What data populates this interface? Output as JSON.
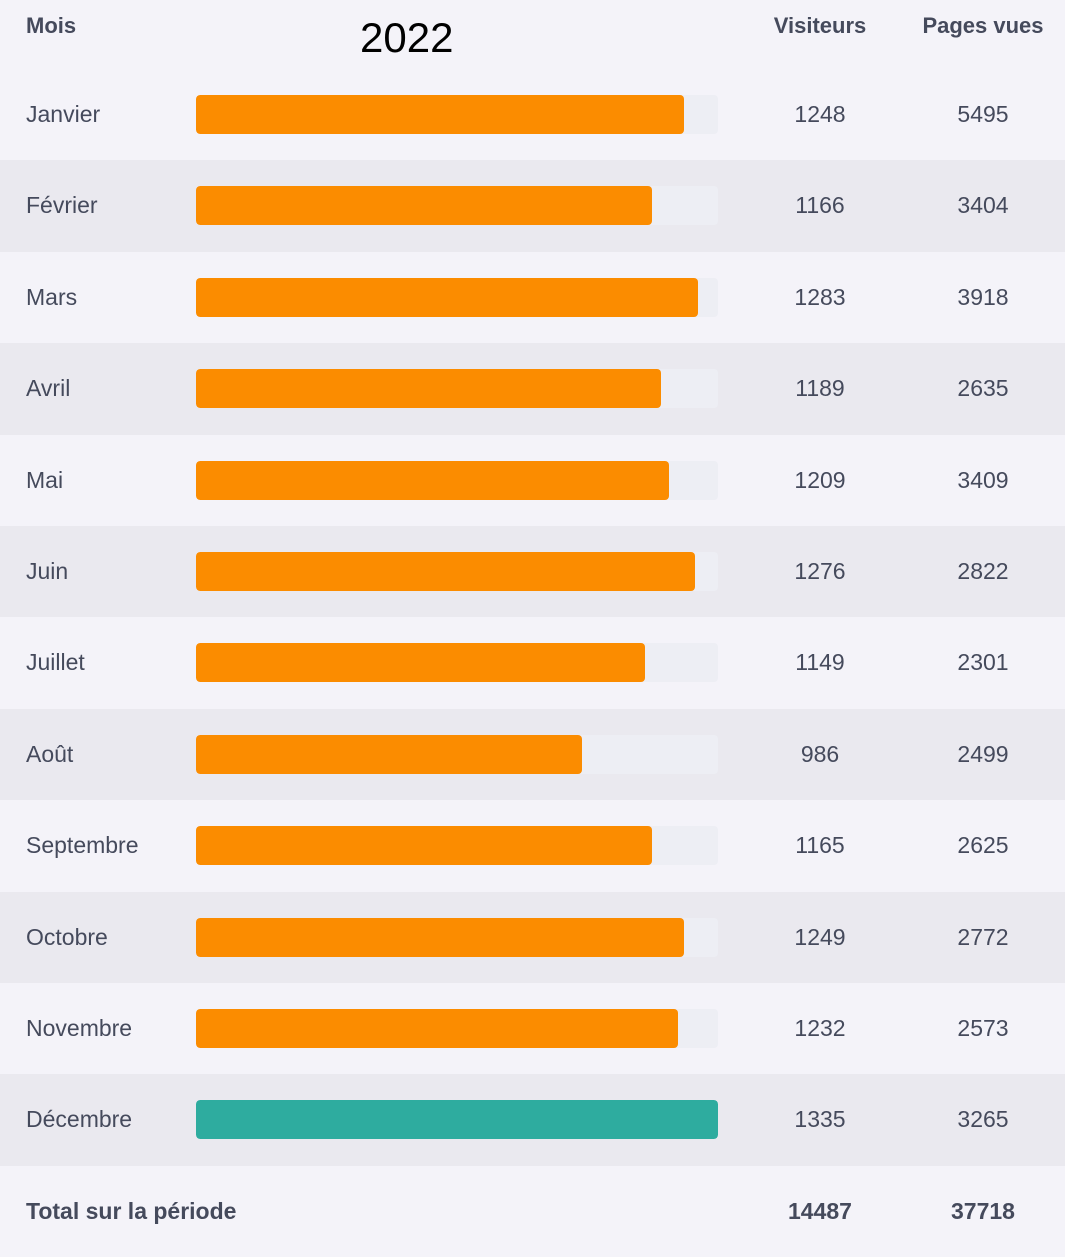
{
  "header": {
    "month_label": "Mois",
    "year": "2022",
    "visitors_label": "Visiteurs",
    "pageviews_label": "Pages vues"
  },
  "colors": {
    "bar_default": "#fb8c00",
    "bar_highlight": "#2eac9f",
    "track": "#edeef4"
  },
  "chart_data": {
    "type": "bar",
    "categories": [
      "Janvier",
      "Février",
      "Mars",
      "Avril",
      "Mai",
      "Juin",
      "Juillet",
      "Août",
      "Septembre",
      "Octobre",
      "Novembre",
      "Décembre"
    ],
    "visitors": [
      1248,
      1166,
      1283,
      1189,
      1209,
      1276,
      1149,
      986,
      1165,
      1249,
      1232,
      1335
    ],
    "pageviews": [
      5495,
      3404,
      3918,
      2635,
      3409,
      2822,
      2301,
      2499,
      2625,
      2772,
      2573,
      3265
    ],
    "bar_max": 1335,
    "highlight_index": 11
  },
  "total": {
    "label": "Total sur la période",
    "visitors": "14487",
    "pageviews": "37718"
  }
}
